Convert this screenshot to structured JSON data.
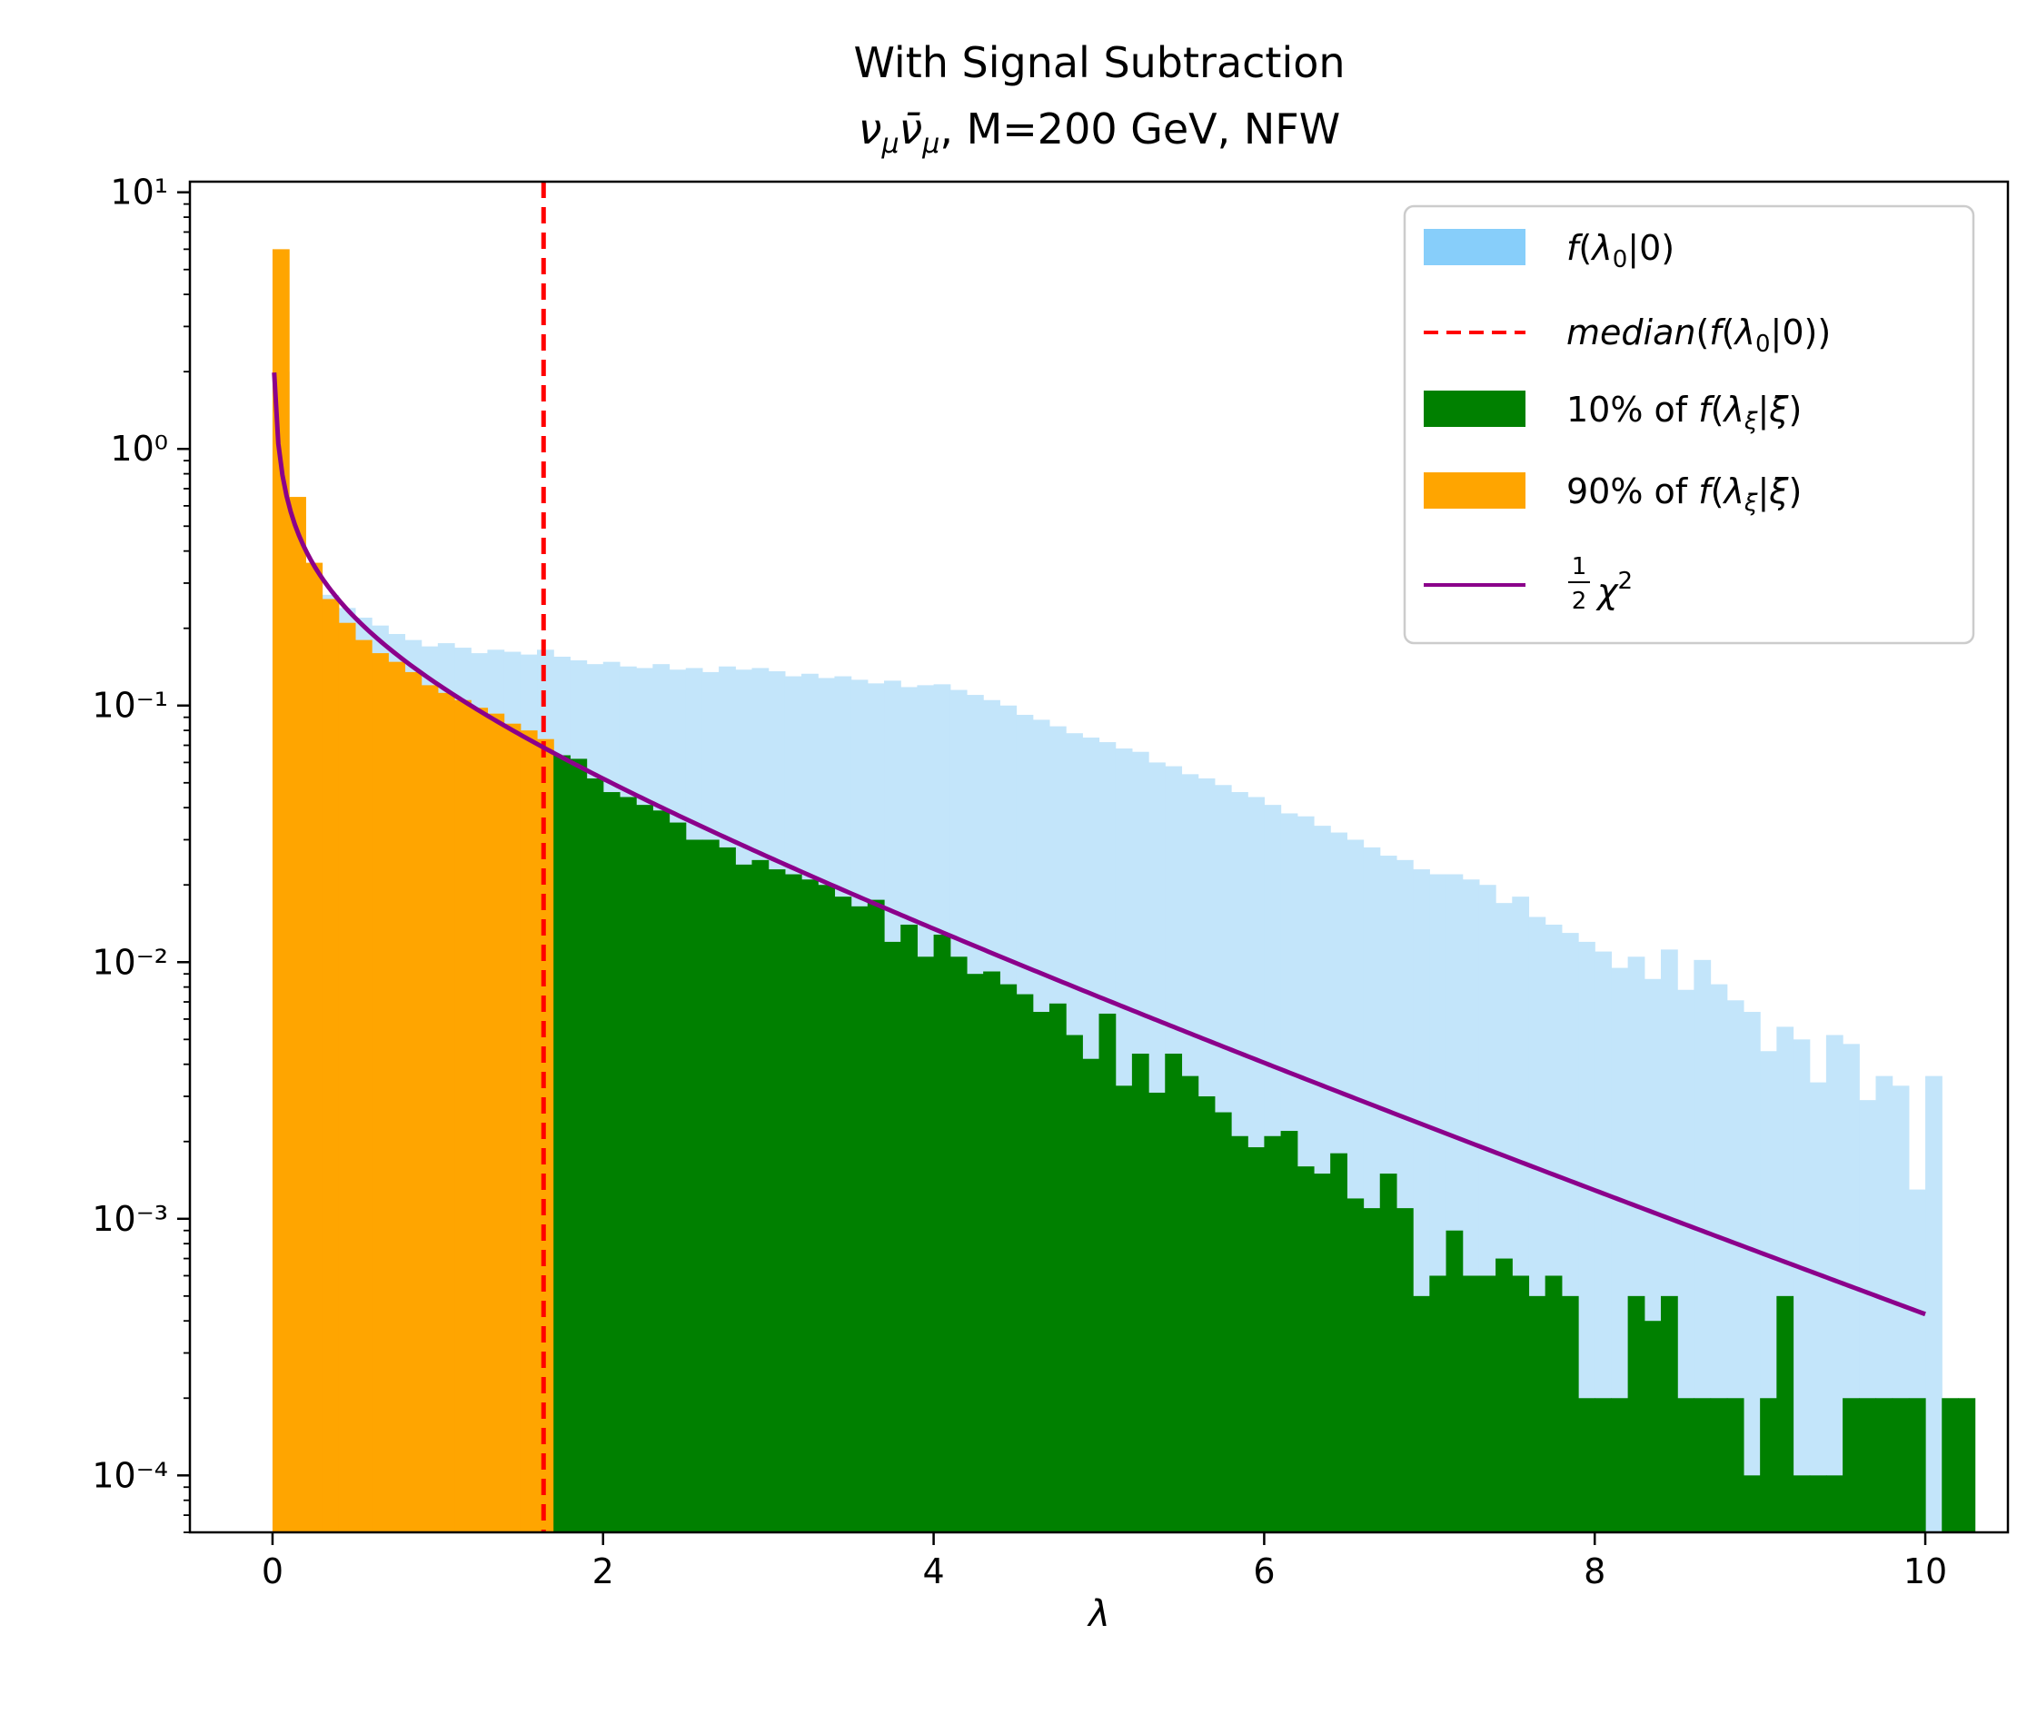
{
  "chart_data": {
    "type": "histogram",
    "title": "With Signal Subtraction",
    "subtitle": "ν_μ ν̄_μ, M=200 GeV, NFW",
    "xlabel": "λ",
    "ylabel": "",
    "xlim": [
      -0.5,
      10.5
    ],
    "ylim": [
      6e-05,
      11
    ],
    "yscale": "log",
    "grid": false,
    "legend_position": "upper right",
    "xticks": [
      0,
      2,
      4,
      6,
      8,
      10
    ],
    "yticks": [
      {
        "value": 0.0001,
        "label": "10⁻⁴"
      },
      {
        "value": 0.001,
        "label": "10⁻³"
      },
      {
        "value": 0.01,
        "label": "10⁻²"
      },
      {
        "value": 0.1,
        "label": "10⁻¹"
      },
      {
        "value": 1,
        "label": "10⁰"
      },
      {
        "value": 10,
        "label": "10¹"
      }
    ],
    "bin_width": 0.1,
    "series": [
      {
        "name": "f(λ₀|0)",
        "kind": "hist",
        "color": "#c3e5fa",
        "x_start": 0.0,
        "values": [
          2.0,
          0.55,
          0.33,
          0.27,
          0.24,
          0.22,
          0.205,
          0.19,
          0.18,
          0.17,
          0.175,
          0.168,
          0.16,
          0.165,
          0.162,
          0.158,
          0.165,
          0.155,
          0.15,
          0.145,
          0.148,
          0.142,
          0.14,
          0.145,
          0.138,
          0.14,
          0.135,
          0.142,
          0.138,
          0.14,
          0.136,
          0.13,
          0.133,
          0.128,
          0.13,
          0.126,
          0.122,
          0.125,
          0.118,
          0.12,
          0.121,
          0.115,
          0.11,
          0.105,
          0.1,
          0.092,
          0.088,
          0.083,
          0.078,
          0.075,
          0.072,
          0.068,
          0.066,
          0.06,
          0.058,
          0.054,
          0.052,
          0.049,
          0.046,
          0.044,
          0.041,
          0.038,
          0.037,
          0.034,
          0.032,
          0.03,
          0.028,
          0.026,
          0.025,
          0.023,
          0.022,
          0.022,
          0.021,
          0.02,
          0.017,
          0.018,
          0.015,
          0.014,
          0.013,
          0.012,
          0.011,
          0.0095,
          0.0105,
          0.0086,
          0.0112,
          0.0078,
          0.0102,
          0.0082,
          0.0071,
          0.0064,
          0.0045,
          0.0056,
          0.005,
          0.0034,
          0.0052,
          0.0048,
          0.0029,
          0.0036,
          0.0033,
          0.0013,
          0.0036
        ]
      },
      {
        "name": "90% of f(λ_ξ|ξ)",
        "kind": "hist",
        "color": "#ffa500",
        "x_start": 0.0,
        "values": [
          6.0,
          0.65,
          0.36,
          0.26,
          0.21,
          0.18,
          0.16,
          0.148,
          0.135,
          0.12,
          0.112,
          0.105,
          0.098,
          0.093,
          0.085,
          0.08,
          0.074
        ]
      },
      {
        "name": "10% of f(λ_ξ|ξ)",
        "kind": "hist",
        "color": "#008000",
        "x_start": 1.7,
        "values": [
          0.064,
          0.062,
          0.052,
          0.046,
          0.044,
          0.041,
          0.039,
          0.035,
          0.03,
          0.03,
          0.028,
          0.024,
          0.025,
          0.023,
          0.022,
          0.021,
          0.02,
          0.018,
          0.0165,
          0.0175,
          0.012,
          0.014,
          0.0105,
          0.0128,
          0.0105,
          0.009,
          0.0092,
          0.0082,
          0.0075,
          0.0064,
          0.0069,
          0.0052,
          0.0042,
          0.0063,
          0.0033,
          0.0044,
          0.0031,
          0.0044,
          0.0036,
          0.003,
          0.0026,
          0.0021,
          0.0019,
          0.0021,
          0.0022,
          0.0016,
          0.0015,
          0.0018,
          0.0012,
          0.0011,
          0.0015,
          0.0011,
          0.0005,
          0.0006,
          0.0009,
          0.0006,
          0.0006,
          0.0007,
          0.0006,
          0.0005,
          0.0006,
          0.0005,
          0.0002,
          0.0002,
          0.0002,
          0.0005,
          0.0004,
          0.0005,
          0.0002,
          0.0002,
          0.0002,
          0.0002,
          0.0001,
          0.0002,
          0.0005,
          0.0001,
          0.0001,
          0.0001,
          0.0002,
          0.0002,
          0.0002,
          0.0002,
          0.0002,
          6e-05,
          0.0002,
          0.0002,
          6e-05
        ]
      }
    ],
    "reference_line": {
      "name": "median(f(λ₀|0))",
      "x": 1.64,
      "color": "#ff0000",
      "style": "dashed"
    },
    "curve": {
      "name": "½χ²",
      "color": "#8b008b",
      "x_range": [
        0.01,
        10.0
      ],
      "description": "half chi-squared density with 1 degree of freedom"
    },
    "legend": [
      {
        "label": "f(λ₀|0)",
        "type": "patch",
        "color": "#87cefa"
      },
      {
        "label": "median(f(λ₀|0))",
        "type": "dashed",
        "color": "#ff0000"
      },
      {
        "label": "10% of f(λ_ξ|ξ)",
        "type": "patch",
        "color": "#008000"
      },
      {
        "label": "90% of f(λ_ξ|ξ)",
        "type": "patch",
        "color": "#ffa500"
      },
      {
        "label": "½χ²",
        "type": "line",
        "color": "#8b008b"
      }
    ]
  }
}
